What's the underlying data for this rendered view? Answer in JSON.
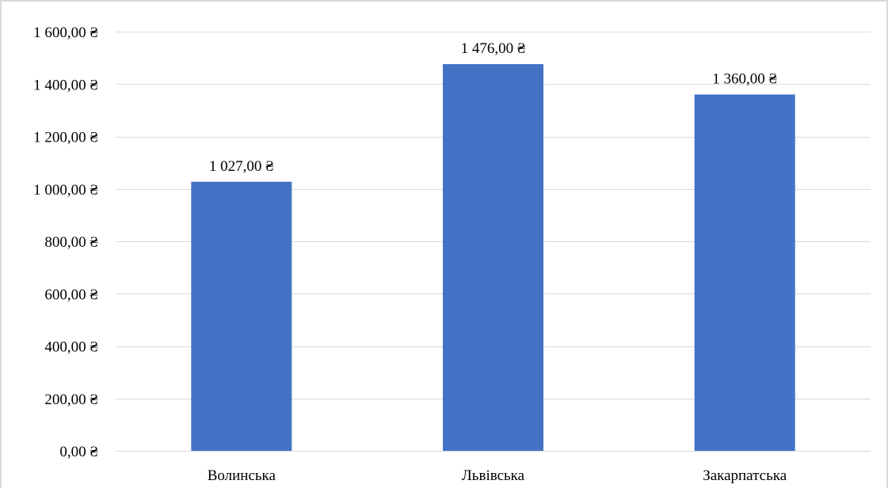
{
  "chart_data": {
    "type": "bar",
    "title": "",
    "xlabel": "",
    "ylabel": "",
    "categories": [
      "Волинська",
      "Львівська",
      "Закарпатська"
    ],
    "values": [
      1027,
      1476,
      1360
    ],
    "data_labels": [
      "1 027,00 ₴",
      "1 476,00 ₴",
      "1 360,00 ₴"
    ],
    "ylim": [
      0,
      1600
    ],
    "y_ticks": [
      0,
      200,
      400,
      600,
      800,
      1000,
      1200,
      1400,
      1600
    ],
    "y_tick_labels": [
      "0,00 ₴",
      "200,00 ₴",
      "400,00 ₴",
      "600,00 ₴",
      "800,00 ₴",
      "1 000,00 ₴",
      "1 200,00 ₴",
      "1 400,00 ₴",
      "1 600,00 ₴"
    ],
    "grid": true,
    "legend": "none",
    "colors": {
      "bar": "#4472C4",
      "grid": "#d9d9d9",
      "axis": "#d9d9d9",
      "text": "#000000"
    }
  }
}
